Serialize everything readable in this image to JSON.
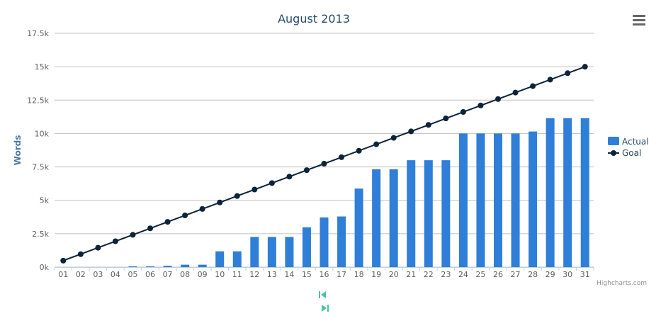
{
  "chart_data": {
    "type": "bar",
    "title": "August 2013",
    "xlabel": "",
    "ylabel": "Words",
    "ylim": [
      0,
      17500
    ],
    "y_ticks": [
      0,
      2500,
      5000,
      7500,
      10000,
      12500,
      15000,
      17500
    ],
    "y_tick_labels": [
      "0k",
      "2.5k",
      "5k",
      "7.5k",
      "10k",
      "12.5k",
      "15k",
      "17.5k"
    ],
    "categories": [
      "01",
      "02",
      "03",
      "04",
      "05",
      "06",
      "07",
      "08",
      "09",
      "10",
      "11",
      "12",
      "13",
      "14",
      "15",
      "16",
      "17",
      "18",
      "19",
      "20",
      "21",
      "22",
      "23",
      "24",
      "25",
      "26",
      "27",
      "28",
      "29",
      "30",
      "31"
    ],
    "grid": true,
    "legend": "right",
    "series": [
      {
        "name": "Actual",
        "type": "bar",
        "color": "#2f7ed8",
        "values": [
          0,
          0,
          0,
          0,
          60,
          60,
          100,
          180,
          180,
          1180,
          1180,
          2260,
          2260,
          2260,
          2980,
          3720,
          3790,
          5880,
          7320,
          7320,
          8000,
          8000,
          8000,
          10000,
          10000,
          10000,
          10000,
          10150,
          11150,
          11150,
          11150
        ]
      },
      {
        "name": "Goal",
        "type": "line",
        "color": "#0d233a",
        "values": [
          484,
          968,
          1452,
          1935,
          2419,
          2903,
          3387,
          3871,
          4355,
          4839,
          5323,
          5806,
          6290,
          6774,
          7258,
          7742,
          8226,
          8710,
          9194,
          9677,
          10161,
          10645,
          11129,
          11613,
          12097,
          12581,
          13065,
          13548,
          14032,
          14516,
          15000
        ]
      }
    ]
  },
  "credits": "Highcharts.com",
  "icons": {
    "menu": "menu-icon",
    "nav_first": "skip-first-icon",
    "nav_last": "skip-last-icon"
  }
}
